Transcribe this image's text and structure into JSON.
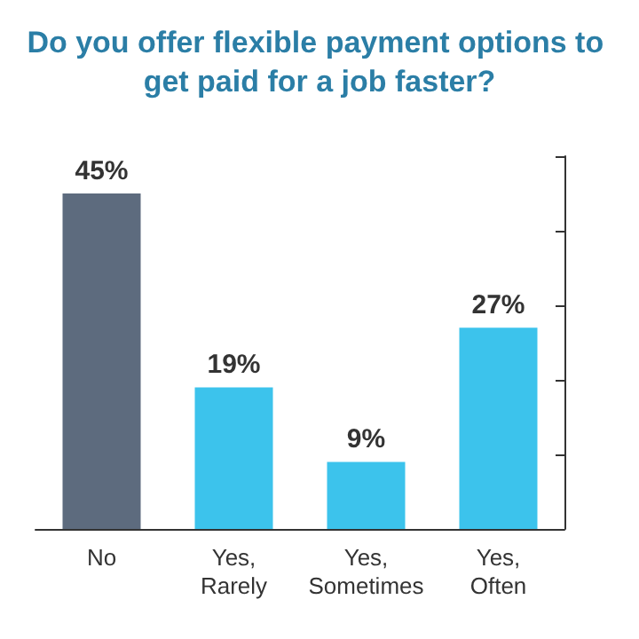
{
  "chart_data": {
    "type": "bar",
    "title": "Do you offer flexible payment options to get paid for a job faster?",
    "categories": [
      "No",
      "Yes, Rarely",
      "Yes, Sometimes",
      "Yes, Often"
    ],
    "values": [
      45,
      19,
      9,
      27
    ],
    "colors": [
      "#5d6b7e",
      "#3cc3ec",
      "#3cc3ec",
      "#3cc3ec"
    ],
    "value_labels": [
      "45%",
      "19%",
      "9%",
      "27%"
    ],
    "ylim": [
      0,
      50
    ],
    "yticks": [
      {
        "value": 0,
        "label": null
      },
      {
        "value": 10,
        "label": null
      },
      {
        "value": 20,
        "label": null
      },
      {
        "value": 30,
        "label": null
      },
      {
        "value": 40,
        "label": null
      },
      {
        "value": 50,
        "label": null
      }
    ],
    "tick_labels": "x",
    "grid": false
  }
}
